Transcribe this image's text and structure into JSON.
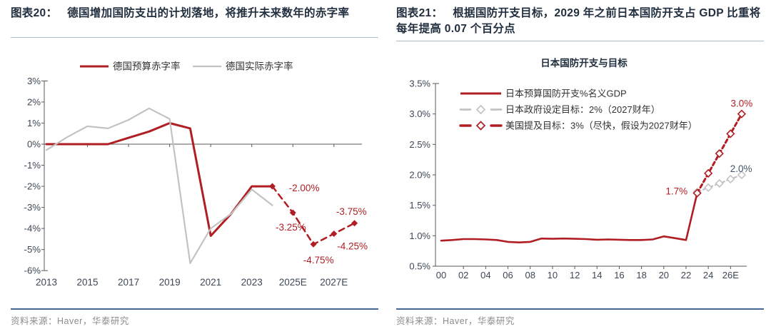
{
  "colors": {
    "red": "#B01E23",
    "gray": "#C3C3C3",
    "slate": "#44546A",
    "axis_line": "#595959",
    "tick_label": "#3D4754",
    "legend_text": "#333333",
    "title_text": "#222F3F",
    "rule_light": "#AEBCCE",
    "rule_dark": "#44688F",
    "source_text": "#8C8C8C"
  },
  "figures": [
    {
      "label": "图表20：",
      "title": "德国增加国防支出的计划落地，将推升未来数年的赤字率",
      "source": "资料来源：Haver，华泰研究"
    },
    {
      "label": "图表21：",
      "title": "根据国防开支目标，2029 年之前日本国防开支占 GDP 比重将每年提高 0.07 个百分点",
      "source": "资料来源：Haver，华泰研究"
    }
  ],
  "chart_data": [
    {
      "type": "line",
      "title": "",
      "ylim": [
        -6,
        3
      ],
      "ytick_values": [
        3,
        2,
        1,
        0,
        -1,
        -2,
        -3,
        -4,
        -5,
        -6
      ],
      "ytick_labels": [
        "3%",
        "2%",
        "1%",
        "0%",
        "-1%",
        "-2%",
        "-3%",
        "-4%",
        "-5%",
        "-6%"
      ],
      "xticks": [
        2013,
        2015,
        2017,
        2019,
        2021,
        2023,
        2025,
        2027
      ],
      "xtick_labels": [
        "2013",
        "2015",
        "2017",
        "2019",
        "2021",
        "2023",
        "2025E",
        "2027E"
      ],
      "legend": [
        {
          "label": "德国预算赤字率",
          "color": "red",
          "style": "solid"
        },
        {
          "label": "德国实际赤字率",
          "color": "gray",
          "style": "solid"
        }
      ],
      "series": [
        {
          "name": "德国预算赤字率",
          "color": "red",
          "style": "solid",
          "x": [
            2013,
            2014,
            2015,
            2016,
            2017,
            2018,
            2019,
            2020,
            2021,
            2022,
            2023,
            2024
          ],
          "y": [
            0,
            0,
            0,
            0,
            0.3,
            0.6,
            1.0,
            0.75,
            -4.35,
            -3.3,
            -2.0,
            -2.0
          ]
        },
        {
          "name": "德国实际赤字率",
          "color": "gray",
          "style": "solid",
          "x": [
            2013,
            2014,
            2015,
            2016,
            2017,
            2018,
            2019,
            2020,
            2021,
            2022,
            2023,
            2024
          ],
          "y": [
            -0.28,
            0.33,
            0.85,
            0.75,
            1.15,
            1.7,
            1.2,
            -5.65,
            -4.0,
            -3.3,
            -2.15,
            -2.9
          ]
        },
        {
          "name": "德国预算赤字率预测",
          "color": "red",
          "style": "dashed",
          "marker": "filled-diamond",
          "x": [
            2024,
            2025,
            2026,
            2027,
            2028
          ],
          "y": [
            -2.0,
            -3.25,
            -4.75,
            -4.25,
            -3.75
          ]
        }
      ],
      "annotations": [
        {
          "text": "-2.00%",
          "x": 2025.55,
          "y": -2.08,
          "color": "red"
        },
        {
          "text": "-3.25%",
          "x": 2024.9,
          "y": -3.95,
          "color": "red"
        },
        {
          "text": "-4.75%",
          "x": 2026.25,
          "y": -5.5,
          "color": "red"
        },
        {
          "text": "-4.25%",
          "x": 2027.9,
          "y": -4.85,
          "color": "red"
        },
        {
          "text": "-3.75%",
          "x": 2027.85,
          "y": -3.2,
          "color": "red"
        }
      ]
    },
    {
      "type": "line",
      "title": "日本国防开支与目标",
      "ylim": [
        0.5,
        3.5
      ],
      "ytick_values": [
        3.5,
        3.0,
        2.5,
        2.0,
        1.5,
        1.0,
        0.5
      ],
      "ytick_labels": [
        "3.5%",
        "3.0%",
        "2.5%",
        "2.0%",
        "1.5%",
        "1.0%",
        "0.5%"
      ],
      "xticks": [
        2000,
        2002,
        2004,
        2006,
        2008,
        2010,
        2012,
        2014,
        2016,
        2018,
        2020,
        2022,
        2024,
        2026
      ],
      "xtick_labels": [
        "00",
        "02",
        "04",
        "06",
        "08",
        "10",
        "12",
        "14",
        "16",
        "18",
        "20",
        "22",
        "24",
        "26E"
      ],
      "legend": [
        {
          "label": "日本预算国防开支%名义GDP",
          "color": "red",
          "style": "solid"
        },
        {
          "label": "日本政府设定目标：2%（2027财年）",
          "color": "gray",
          "style": "dash-diamond"
        },
        {
          "label": "美国提及目标：3%（尽快，假设为2027财年）",
          "color": "red",
          "style": "dash-diamond"
        }
      ],
      "series": [
        {
          "name": "日本预算国防开支%名义GDP",
          "color": "red",
          "style": "solid",
          "x": [
            2000,
            2001,
            2002,
            2003,
            2004,
            2005,
            2006,
            2007,
            2008,
            2009,
            2010,
            2011,
            2012,
            2013,
            2014,
            2015,
            2016,
            2017,
            2018,
            2019,
            2020,
            2021,
            2022,
            2023
          ],
          "y": [
            0.92,
            0.93,
            0.945,
            0.945,
            0.94,
            0.93,
            0.9,
            0.89,
            0.9,
            0.955,
            0.95,
            0.955,
            0.95,
            0.945,
            0.935,
            0.94,
            0.935,
            0.93,
            0.93,
            0.94,
            0.99,
            0.96,
            0.93,
            1.7
          ]
        },
        {
          "name": "日本政府设定目标：2%（2027财年）",
          "color": "gray",
          "style": "dashed",
          "marker": "open-diamond",
          "x": [
            2023,
            2024,
            2025,
            2026,
            2027
          ],
          "y": [
            1.72,
            1.79,
            1.86,
            1.93,
            2.0
          ]
        },
        {
          "name": "美国提及目标：3%（尽快，假设为2027财年）",
          "color": "red",
          "style": "dashed",
          "marker": "open-diamond",
          "x": [
            2023,
            2024,
            2025,
            2026,
            2027
          ],
          "y": [
            1.7,
            2.025,
            2.35,
            2.675,
            3.0
          ]
        }
      ],
      "annotations": [
        {
          "text": "1.7%",
          "x": 2021.15,
          "y": 1.73,
          "color": "red"
        },
        {
          "text": "2.0%",
          "x": 2026.95,
          "y": 2.1,
          "color": "slate"
        },
        {
          "text": "3.0%",
          "x": 2027.0,
          "y": 3.17,
          "color": "red"
        }
      ]
    }
  ]
}
